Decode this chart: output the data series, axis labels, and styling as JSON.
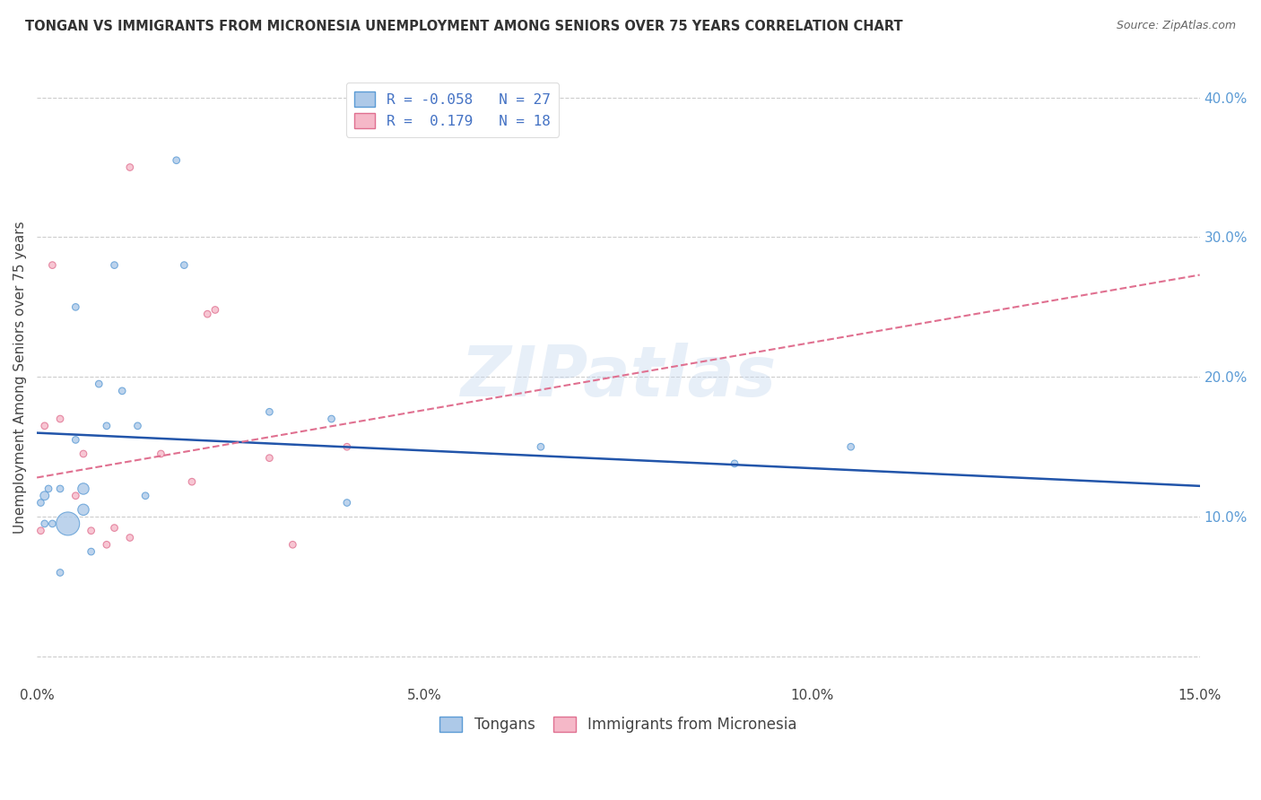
{
  "title": "TONGAN VS IMMIGRANTS FROM MICRONESIA UNEMPLOYMENT AMONG SENIORS OVER 75 YEARS CORRELATION CHART",
  "source": "Source: ZipAtlas.com",
  "ylabel": "Unemployment Among Seniors over 75 years",
  "xlim": [
    0.0,
    0.15
  ],
  "ylim": [
    -0.02,
    0.42
  ],
  "plot_ylim": [
    -0.02,
    0.42
  ],
  "xticks": [
    0.0,
    0.025,
    0.05,
    0.075,
    0.1,
    0.125,
    0.15
  ],
  "xtick_labels": [
    "0.0%",
    "",
    "5.0%",
    "",
    "10.0%",
    "",
    "15.0%"
  ],
  "yticks_right": [
    0.0,
    0.1,
    0.2,
    0.3,
    0.4
  ],
  "ytick_labels_right": [
    "",
    "10.0%",
    "20.0%",
    "30.0%",
    "40.0%"
  ],
  "tongans_x": [
    0.0005,
    0.001,
    0.001,
    0.0015,
    0.002,
    0.003,
    0.003,
    0.004,
    0.005,
    0.005,
    0.006,
    0.006,
    0.007,
    0.008,
    0.009,
    0.01,
    0.011,
    0.013,
    0.014,
    0.018,
    0.019,
    0.03,
    0.038,
    0.04,
    0.065,
    0.09,
    0.105
  ],
  "tongans_y": [
    0.11,
    0.115,
    0.095,
    0.12,
    0.095,
    0.12,
    0.06,
    0.095,
    0.25,
    0.155,
    0.105,
    0.12,
    0.075,
    0.195,
    0.165,
    0.28,
    0.19,
    0.165,
    0.115,
    0.355,
    0.28,
    0.175,
    0.17,
    0.11,
    0.15,
    0.138,
    0.15
  ],
  "tongans_size": [
    30,
    50,
    30,
    30,
    30,
    30,
    30,
    350,
    30,
    30,
    80,
    80,
    30,
    30,
    30,
    30,
    30,
    30,
    30,
    30,
    30,
    30,
    30,
    30,
    30,
    30,
    30
  ],
  "micronesia_x": [
    0.0005,
    0.001,
    0.002,
    0.003,
    0.005,
    0.006,
    0.007,
    0.009,
    0.01,
    0.012,
    0.012,
    0.016,
    0.02,
    0.022,
    0.023,
    0.03,
    0.033,
    0.04
  ],
  "micronesia_y": [
    0.09,
    0.165,
    0.28,
    0.17,
    0.115,
    0.145,
    0.09,
    0.08,
    0.092,
    0.085,
    0.35,
    0.145,
    0.125,
    0.245,
    0.248,
    0.142,
    0.08,
    0.15
  ],
  "micronesia_size": [
    30,
    30,
    30,
    30,
    30,
    30,
    30,
    30,
    30,
    30,
    30,
    30,
    30,
    30,
    30,
    30,
    30,
    30
  ],
  "tongans_color": "#adc9e8",
  "tongans_edge_color": "#5b9bd5",
  "micronesia_color": "#f5b8c8",
  "micronesia_edge_color": "#e07090",
  "tongans_line_color": "#2255aa",
  "micronesia_line_color": "#e07090",
  "tongans_line_x": [
    0.0,
    0.15
  ],
  "tongans_line_y": [
    0.16,
    0.122
  ],
  "micronesia_line_x": [
    0.0,
    0.15
  ],
  "micronesia_line_y": [
    0.128,
    0.273
  ],
  "background_color": "#ffffff",
  "grid_color": "#cccccc",
  "watermark": "ZIPatlas"
}
